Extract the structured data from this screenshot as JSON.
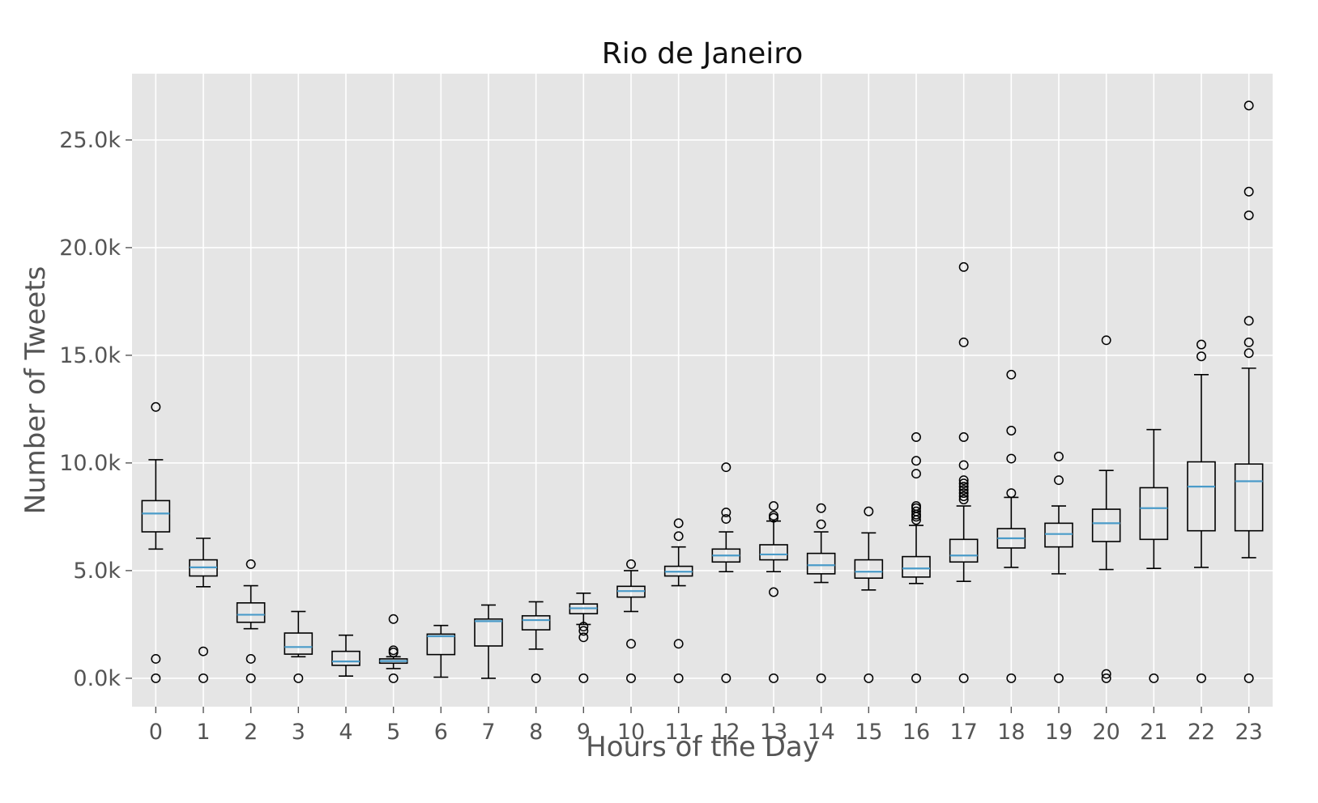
{
  "chart_data": {
    "type": "boxplot",
    "title": "Rio de Janeiro",
    "xlabel": "Hours of the Day",
    "ylabel": "Number of Tweets",
    "unit": "thousands of tweets",
    "categories": [
      "0",
      "1",
      "2",
      "3",
      "4",
      "5",
      "6",
      "7",
      "8",
      "9",
      "10",
      "11",
      "12",
      "13",
      "14",
      "15",
      "16",
      "17",
      "18",
      "19",
      "20",
      "21",
      "22",
      "23"
    ],
    "y_ticks": [
      0,
      5,
      10,
      15,
      20,
      25
    ],
    "y_tick_labels": [
      "0.0k",
      "5.0k",
      "10.0k",
      "15.0k",
      "20.0k",
      "25.0k"
    ],
    "ylim": [
      -1.32,
      28.08
    ],
    "xlim": [
      -0.5,
      23.5
    ],
    "grid": "on",
    "legend": "none",
    "series": [
      {
        "hour": "0",
        "whislo": 6.0,
        "q1": 6.8,
        "med": 7.65,
        "q3": 8.25,
        "whishi": 10.15,
        "outliers": [
          12.6,
          0.9,
          0
        ]
      },
      {
        "hour": "1",
        "whislo": 4.25,
        "q1": 4.75,
        "med": 5.15,
        "q3": 5.5,
        "whishi": 6.5,
        "outliers": [
          1.25,
          0
        ]
      },
      {
        "hour": "2",
        "whislo": 2.3,
        "q1": 2.6,
        "med": 2.95,
        "q3": 3.5,
        "whishi": 4.3,
        "outliers": [
          5.3,
          0.9,
          0
        ]
      },
      {
        "hour": "3",
        "whislo": 1.0,
        "q1": 1.12,
        "med": 1.45,
        "q3": 2.1,
        "whishi": 3.1,
        "outliers": [
          0
        ]
      },
      {
        "hour": "4",
        "whislo": 0.1,
        "q1": 0.6,
        "med": 0.78,
        "q3": 1.25,
        "whishi": 2.0,
        "outliers": []
      },
      {
        "hour": "5",
        "whislo": 0.45,
        "q1": 0.7,
        "med": 0.8,
        "q3": 0.9,
        "whishi": 1.0,
        "outliers": [
          2.75,
          1.3,
          1.2,
          0
        ]
      },
      {
        "hour": "6",
        "whislo": 0.05,
        "q1": 1.1,
        "med": 1.95,
        "q3": 2.05,
        "whishi": 2.45,
        "outliers": []
      },
      {
        "hour": "7",
        "whislo": 0.0,
        "q1": 1.5,
        "med": 2.65,
        "q3": 2.75,
        "whishi": 3.4,
        "outliers": []
      },
      {
        "hour": "8",
        "whislo": 1.35,
        "q1": 2.25,
        "med": 2.7,
        "q3": 2.9,
        "whishi": 3.55,
        "outliers": [
          0
        ]
      },
      {
        "hour": "9",
        "whislo": 2.5,
        "q1": 3.0,
        "med": 3.25,
        "q3": 3.45,
        "whishi": 3.95,
        "outliers": [
          2.4,
          2.2,
          1.9,
          0
        ]
      },
      {
        "hour": "10",
        "whislo": 3.1,
        "q1": 3.77,
        "med": 4.05,
        "q3": 4.27,
        "whishi": 5.0,
        "outliers": [
          5.3,
          1.6,
          0
        ]
      },
      {
        "hour": "11",
        "whislo": 4.3,
        "q1": 4.75,
        "med": 4.95,
        "q3": 5.2,
        "whishi": 6.1,
        "outliers": [
          7.2,
          6.6,
          1.6,
          0
        ]
      },
      {
        "hour": "12",
        "whislo": 4.95,
        "q1": 5.4,
        "med": 5.7,
        "q3": 6.0,
        "whishi": 6.8,
        "outliers": [
          9.8,
          7.7,
          7.4,
          0
        ]
      },
      {
        "hour": "13",
        "whislo": 4.95,
        "q1": 5.5,
        "med": 5.75,
        "q3": 6.2,
        "whishi": 7.3,
        "outliers": [
          8.0,
          7.55,
          7.45,
          4.0,
          0
        ]
      },
      {
        "hour": "14",
        "whislo": 4.45,
        "q1": 4.85,
        "med": 5.25,
        "q3": 5.8,
        "whishi": 6.8,
        "outliers": [
          7.9,
          7.15,
          0
        ]
      },
      {
        "hour": "15",
        "whislo": 4.1,
        "q1": 4.65,
        "med": 4.95,
        "q3": 5.5,
        "whishi": 6.75,
        "outliers": [
          7.75,
          0
        ]
      },
      {
        "hour": "16",
        "whislo": 4.4,
        "q1": 4.7,
        "med": 5.1,
        "q3": 5.65,
        "whishi": 7.1,
        "outliers": [
          11.2,
          10.1,
          9.5,
          8.0,
          7.9,
          7.75,
          7.6,
          7.5,
          7.35,
          0
        ]
      },
      {
        "hour": "17",
        "whislo": 4.5,
        "q1": 5.4,
        "med": 5.7,
        "q3": 6.45,
        "whishi": 8.0,
        "outliers": [
          19.1,
          15.6,
          11.2,
          9.9,
          9.2,
          9.05,
          8.9,
          8.75,
          8.6,
          8.45,
          8.3,
          0
        ]
      },
      {
        "hour": "18",
        "whislo": 5.15,
        "q1": 6.05,
        "med": 6.5,
        "q3": 6.95,
        "whishi": 8.4,
        "outliers": [
          14.1,
          11.5,
          10.2,
          8.6,
          0
        ]
      },
      {
        "hour": "19",
        "whislo": 4.85,
        "q1": 6.1,
        "med": 6.7,
        "q3": 7.2,
        "whishi": 8.0,
        "outliers": [
          10.3,
          9.2,
          0
        ]
      },
      {
        "hour": "20",
        "whislo": 5.05,
        "q1": 6.35,
        "med": 7.2,
        "q3": 7.85,
        "whishi": 9.65,
        "outliers": [
          15.7,
          0.2,
          0
        ]
      },
      {
        "hour": "21",
        "whislo": 5.1,
        "q1": 6.45,
        "med": 7.9,
        "q3": 8.85,
        "whishi": 11.55,
        "outliers": [
          0
        ]
      },
      {
        "hour": "22",
        "whislo": 5.15,
        "q1": 6.85,
        "med": 8.9,
        "q3": 10.05,
        "whishi": 14.1,
        "outliers": [
          15.5,
          14.95,
          0
        ]
      },
      {
        "hour": "23",
        "whislo": 5.6,
        "q1": 6.85,
        "med": 9.15,
        "q3": 9.95,
        "whishi": 14.4,
        "outliers": [
          26.6,
          22.6,
          21.5,
          16.6,
          15.6,
          15.1,
          0
        ]
      }
    ],
    "style": {
      "plot_background": "#e5e5e5",
      "figure_background": "#ffffff",
      "grid_color": "#ffffff",
      "box_edge_color": "#000000",
      "median_color": "#4a9bc9",
      "outlier_edge_color": "#000000",
      "tick_label_color": "#555555",
      "axis_label_color": "#555555",
      "title_color": "#111111"
    }
  }
}
